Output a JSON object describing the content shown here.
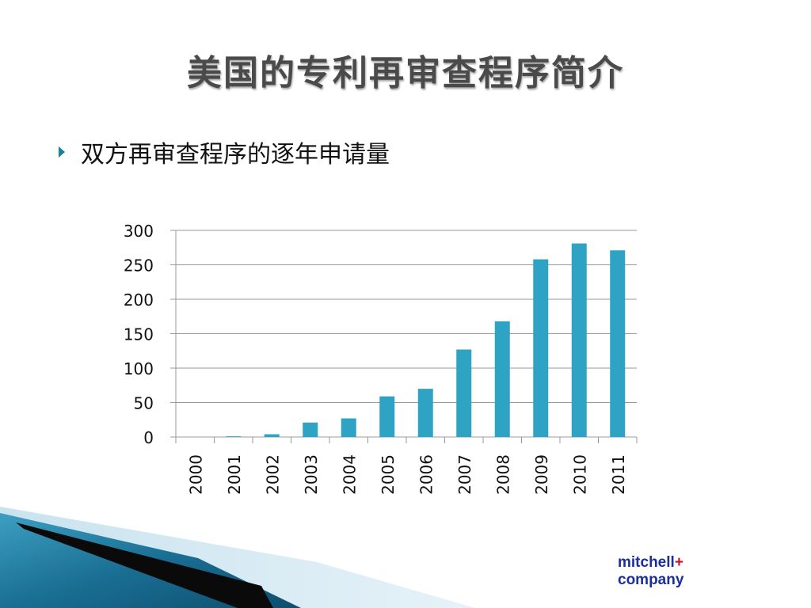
{
  "slide": {
    "title": "美国的专利再审查程序简介",
    "bullet": "双方再审查程序的逐年申请量"
  },
  "logo": {
    "line1": "mitchell",
    "plus": "+",
    "line2": "company"
  },
  "colors": {
    "bar": "#2ea3c3",
    "grid": "#999999",
    "bullet_marker": "#1f7fa0",
    "logo_text": "#1b2f9c",
    "logo_plus": "#c8102e"
  },
  "chart_data": {
    "type": "bar",
    "categories": [
      "2000",
      "2001",
      "2002",
      "2003",
      "2004",
      "2005",
      "2006",
      "2007",
      "2008",
      "2009",
      "2010",
      "2011"
    ],
    "values": [
      0,
      1,
      4,
      21,
      27,
      59,
      70,
      127,
      168,
      258,
      281,
      271
    ],
    "y_ticks": [
      0,
      50,
      100,
      150,
      200,
      250,
      300
    ],
    "ylim": [
      0,
      300
    ],
    "grid": true,
    "legend": "none",
    "xlabel": "",
    "ylabel": ""
  }
}
